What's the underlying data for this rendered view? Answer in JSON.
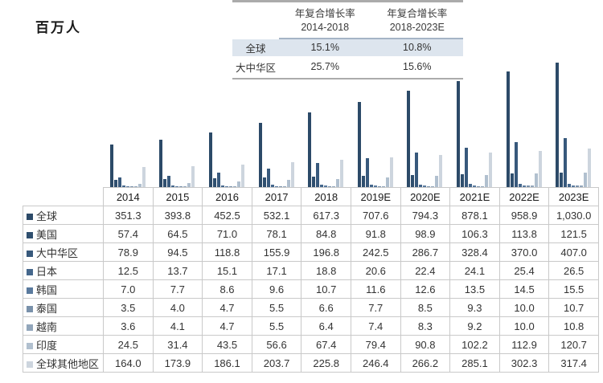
{
  "unit_label": "百万人",
  "cagr_table": {
    "cols": [
      {
        "line1": "年复合增长率",
        "line2": "2014-2018"
      },
      {
        "line1": "年复合增长率",
        "line2": "2018-2023E"
      }
    ],
    "rows": [
      {
        "label": "全球",
        "values": [
          "15.1%",
          "10.8%"
        ]
      },
      {
        "label": "大中华区",
        "values": [
          "25.7%",
          "15.6%"
        ]
      }
    ]
  },
  "chart_data": {
    "type": "bar",
    "title": "",
    "ylabel": "百万人",
    "xlabel": "",
    "ylim": [
      0,
      1030
    ],
    "grid": false,
    "legend_position": "table-row-labels",
    "categories": [
      "2014",
      "2015",
      "2016",
      "2017",
      "2018",
      "2019E",
      "2020E",
      "2021E",
      "2022E",
      "2023E"
    ],
    "series": [
      {
        "name": "全球",
        "color": "#2c4a68",
        "values": [
          351.3,
          393.8,
          452.5,
          532.1,
          617.3,
          707.6,
          794.3,
          878.1,
          958.9,
          1030.0
        ]
      },
      {
        "name": "美国",
        "color": "#2f4f6f",
        "values": [
          57.4,
          64.5,
          71.0,
          78.1,
          84.8,
          91.8,
          98.9,
          106.3,
          113.8,
          121.5
        ]
      },
      {
        "name": "大中华区",
        "color": "#38597c",
        "values": [
          78.9,
          94.5,
          118.8,
          155.9,
          196.8,
          242.5,
          286.7,
          328.4,
          370.0,
          407.0
        ]
      },
      {
        "name": "日本",
        "color": "#45678c",
        "values": [
          12.5,
          13.7,
          15.1,
          17.1,
          18.8,
          20.6,
          22.4,
          24.1,
          25.4,
          26.5
        ]
      },
      {
        "name": "韩国",
        "color": "#5a7a9e",
        "values": [
          7.0,
          7.7,
          8.6,
          9.6,
          10.7,
          11.6,
          12.6,
          13.5,
          14.5,
          15.5
        ]
      },
      {
        "name": "泰国",
        "color": "#7991ab",
        "values": [
          3.5,
          4.0,
          4.7,
          5.5,
          6.6,
          7.7,
          8.5,
          9.3,
          10.0,
          10.7
        ]
      },
      {
        "name": "越南",
        "color": "#92a6bb",
        "values": [
          3.6,
          4.1,
          4.7,
          5.5,
          6.4,
          7.4,
          8.3,
          9.2,
          10.0,
          10.8
        ]
      },
      {
        "name": "印度",
        "color": "#b1c0cf",
        "values": [
          24.5,
          31.4,
          43.5,
          56.6,
          67.4,
          79.4,
          90.8,
          102.2,
          112.9,
          120.7
        ]
      },
      {
        "name": "全球其他地区",
        "color": "#cdd5de",
        "values": [
          164.0,
          173.9,
          186.1,
          203.7,
          225.8,
          246.4,
          266.2,
          285.1,
          302.3,
          317.4
        ]
      }
    ]
  },
  "table": {
    "year_headers": [
      "2014",
      "2015",
      "2016",
      "2017",
      "2018",
      "2019E",
      "2020E",
      "2021E",
      "2022E",
      "2023E"
    ],
    "rows": [
      {
        "label": "全球",
        "cells": [
          "351.3",
          "393.8",
          "452.5",
          "532.1",
          "617.3",
          "707.6",
          "794.3",
          "878.1",
          "958.9",
          "1,030.0"
        ]
      },
      {
        "label": "美国",
        "cells": [
          "57.4",
          "64.5",
          "71.0",
          "78.1",
          "84.8",
          "91.8",
          "98.9",
          "106.3",
          "113.8",
          "121.5"
        ]
      },
      {
        "label": "大中华区",
        "cells": [
          "78.9",
          "94.5",
          "118.8",
          "155.9",
          "196.8",
          "242.5",
          "286.7",
          "328.4",
          "370.0",
          "407.0"
        ]
      },
      {
        "label": "日本",
        "cells": [
          "12.5",
          "13.7",
          "15.1",
          "17.1",
          "18.8",
          "20.6",
          "22.4",
          "24.1",
          "25.4",
          "26.5"
        ]
      },
      {
        "label": "韩国",
        "cells": [
          "7.0",
          "7.7",
          "8.6",
          "9.6",
          "10.7",
          "11.6",
          "12.6",
          "13.5",
          "14.5",
          "15.5"
        ]
      },
      {
        "label": "泰国",
        "cells": [
          "3.5",
          "4.0",
          "4.7",
          "5.5",
          "6.6",
          "7.7",
          "8.5",
          "9.3",
          "10.0",
          "10.7"
        ]
      },
      {
        "label": "越南",
        "cells": [
          "3.6",
          "4.1",
          "4.7",
          "5.5",
          "6.4",
          "7.4",
          "8.3",
          "9.2",
          "10.0",
          "10.8"
        ]
      },
      {
        "label": "印度",
        "cells": [
          "24.5",
          "31.4",
          "43.5",
          "56.6",
          "67.4",
          "79.4",
          "90.8",
          "102.2",
          "112.9",
          "120.7"
        ]
      },
      {
        "label": "全球其他地区",
        "cells": [
          "164.0",
          "173.9",
          "186.1",
          "203.7",
          "225.8",
          "246.4",
          "266.2",
          "285.1",
          "302.3",
          "317.4"
        ]
      }
    ]
  }
}
